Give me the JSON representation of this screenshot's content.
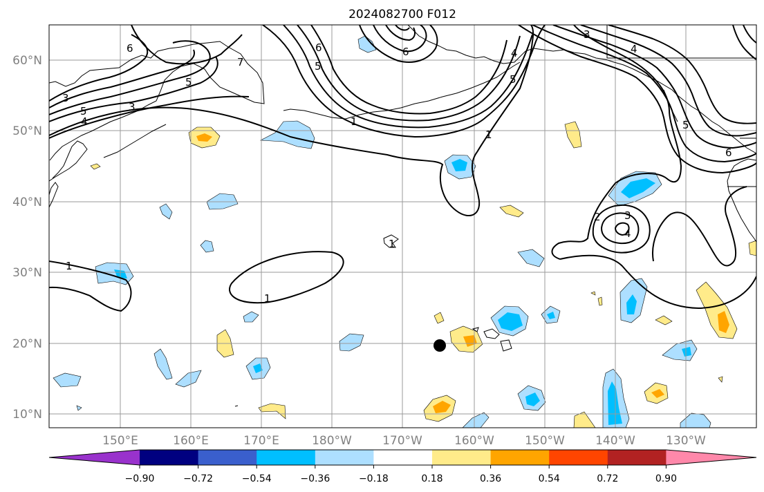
{
  "title": "2024082700 F012",
  "lat_labels": [
    "60°N",
    "50°N",
    "40°N",
    "30°N",
    "20°N",
    "10°N"
  ],
  "lon_labels": [
    "150°E",
    "160°E",
    "170°E",
    "180°W",
    "170°W",
    "160°W",
    "150°W",
    "140°W",
    "130°W"
  ],
  "colorbar": {
    "tick_labels": [
      "−0.90",
      "−0.72",
      "−0.54",
      "−0.36",
      "−0.18",
      "0.18",
      "0.36",
      "0.54",
      "0.72",
      "0.90"
    ],
    "colors": [
      "#9932CC",
      "#000080",
      "#3A5FCD",
      "#00BFFF",
      "#ADDFFF",
      "#FFFFFF",
      "#FFEB8A",
      "#FFA500",
      "#FF4500",
      "#B22222",
      "#FF88AA"
    ]
  },
  "contour_labels": [
    "6",
    "5",
    "4",
    "3",
    "7",
    "5",
    "6",
    "5",
    "6",
    "5",
    "4",
    "3",
    "3",
    "4",
    "1",
    "1",
    "1",
    "1",
    "1",
    "2",
    "3",
    "4",
    "5",
    "6"
  ],
  "marker": "storm-center-dot"
}
